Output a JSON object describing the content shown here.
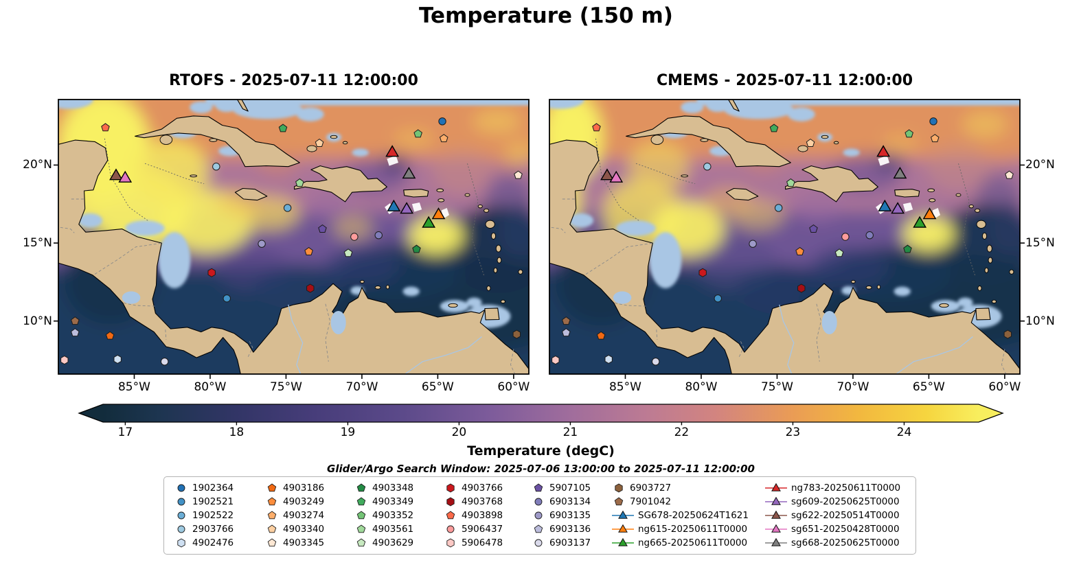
{
  "figure_title": "Temperature (150 m)",
  "panels": [
    {
      "id": "rtofs",
      "title": "RTOFS - 2025-07-11 12:00:00"
    },
    {
      "id": "cmems",
      "title": "CMEMS - 2025-07-11 12:00:00"
    }
  ],
  "axes": {
    "lat_ticks": [
      {
        "lat": 20,
        "label": "20°N"
      },
      {
        "lat": 15,
        "label": "15°N"
      },
      {
        "lat": 10,
        "label": "10°N"
      }
    ],
    "lon_ticks": [
      {
        "lon": 85,
        "label": "85°W"
      },
      {
        "lon": 80,
        "label": "80°W"
      },
      {
        "lon": 75,
        "label": "75°W"
      },
      {
        "lon": 70,
        "label": "70°W"
      },
      {
        "lon": 65,
        "label": "65°W"
      },
      {
        "lon": 60,
        "label": "60°W"
      }
    ]
  },
  "colorbar": {
    "label": "Temperature (degC)",
    "body_min": 16.8,
    "body_max": 24.67,
    "ticks": [
      17,
      18,
      19,
      20,
      21,
      22,
      23,
      24
    ],
    "stops": [
      {
        "v": 16.8,
        "color": "#122c3c"
      },
      {
        "v": 17.3,
        "color": "#1d3550"
      },
      {
        "v": 18.0,
        "color": "#323566"
      },
      {
        "v": 18.7,
        "color": "#473d7a"
      },
      {
        "v": 19.5,
        "color": "#5c4a8a"
      },
      {
        "v": 20.3,
        "color": "#7e5c9b"
      },
      {
        "v": 21.0,
        "color": "#a06d9c"
      },
      {
        "v": 21.7,
        "color": "#bd7b93"
      },
      {
        "v": 22.3,
        "color": "#d28480"
      },
      {
        "v": 23.0,
        "color": "#ea9c55"
      },
      {
        "v": 23.6,
        "color": "#f2b83f"
      },
      {
        "v": 24.2,
        "color": "#f6d53f"
      },
      {
        "v": 24.67,
        "color": "#f8ee5e"
      }
    ]
  },
  "search_window": "Glider/Argo Search Window: 2025-07-06 13:00:00 to 2025-07-11 12:00:00",
  "map_colors": {
    "land": "#d8bd92",
    "shallow": "#a9c6e4",
    "coastline": "#000000"
  },
  "legend": {
    "entries": [
      {
        "label": "1902364",
        "shape": "circle",
        "color": "#2171b5",
        "type": "float"
      },
      {
        "label": "1902521",
        "shape": "circle",
        "color": "#4292c6",
        "type": "float"
      },
      {
        "label": "1902522",
        "shape": "circle",
        "color": "#6baed6",
        "type": "float"
      },
      {
        "label": "2903766",
        "shape": "circle",
        "color": "#9ecae1",
        "type": "float"
      },
      {
        "label": "4902476",
        "shape": "hexagon",
        "color": "#cfe0f2",
        "type": "float"
      },
      {
        "label": "4903186",
        "shape": "pentagon",
        "color": "#f16913",
        "type": "float"
      },
      {
        "label": "4903249",
        "shape": "pentagon",
        "color": "#fd8d3c",
        "type": "float"
      },
      {
        "label": "4903274",
        "shape": "pentagon",
        "color": "#fdae6b",
        "type": "float"
      },
      {
        "label": "4903340",
        "shape": "pentagon",
        "color": "#fdd0a2",
        "type": "float"
      },
      {
        "label": "4903345",
        "shape": "pentagon",
        "color": "#fee8d4",
        "type": "float"
      },
      {
        "label": "4903348",
        "shape": "pentagon",
        "color": "#238b45",
        "type": "float"
      },
      {
        "label": "4903349",
        "shape": "pentagon",
        "color": "#41ab5d",
        "type": "float"
      },
      {
        "label": "4903352",
        "shape": "pentagon",
        "color": "#74c476",
        "type": "float"
      },
      {
        "label": "4903561",
        "shape": "pentagon",
        "color": "#a1d99b",
        "type": "float"
      },
      {
        "label": "4903629",
        "shape": "pentagon",
        "color": "#c7e9c0",
        "type": "float"
      },
      {
        "label": "4903766",
        "shape": "hexagon",
        "color": "#cb181d",
        "type": "float"
      },
      {
        "label": "4903768",
        "shape": "hexagon",
        "color": "#a50f15",
        "type": "float"
      },
      {
        "label": "4903898",
        "shape": "pentagon",
        "color": "#fb6a4a",
        "type": "float"
      },
      {
        "label": "5906437",
        "shape": "circle",
        "color": "#fc9c9c",
        "type": "float"
      },
      {
        "label": "5906478",
        "shape": "hexagon",
        "color": "#fcc9c5",
        "type": "float"
      },
      {
        "label": "5907105",
        "shape": "pentagon",
        "color": "#6a51a3",
        "type": "float"
      },
      {
        "label": "6903134",
        "shape": "circle",
        "color": "#807dba",
        "type": "float"
      },
      {
        "label": "6903135",
        "shape": "circle",
        "color": "#9e9ac8",
        "type": "float"
      },
      {
        "label": "6903136",
        "shape": "pentagon",
        "color": "#bcbddc",
        "type": "float"
      },
      {
        "label": "6903137",
        "shape": "circle",
        "color": "#dadaeb",
        "type": "float"
      },
      {
        "label": "6903727",
        "shape": "hexagon",
        "color": "#8c613c",
        "type": "float"
      },
      {
        "label": "7901042",
        "shape": "pentagon",
        "color": "#9c6b4a",
        "type": "float"
      },
      {
        "label": "SG678-20250624T1621",
        "shape": "triangle",
        "color": "#1f77b4",
        "type": "glider"
      },
      {
        "label": "ng615-20250611T0000",
        "shape": "triangle",
        "color": "#ff7f0e",
        "type": "glider"
      },
      {
        "label": "ng665-20250611T0000",
        "shape": "triangle",
        "color": "#2ca02c",
        "type": "glider"
      },
      {
        "label": "ng783-20250611T0000",
        "shape": "triangle",
        "color": "#d62728",
        "type": "glider"
      },
      {
        "label": "sg609-20250625T0000",
        "shape": "triangle",
        "color": "#9467bd",
        "type": "glider"
      },
      {
        "label": "sg622-20250514T0000",
        "shape": "triangle",
        "color": "#8c564b",
        "type": "glider"
      },
      {
        "label": "sg651-20250428T0000",
        "shape": "triangle",
        "color": "#e377c2",
        "type": "glider"
      },
      {
        "label": "sg668-20250625T0000",
        "shape": "triangle",
        "color": "#7f7f7f",
        "type": "glider"
      }
    ]
  },
  "map_markers": [
    {
      "id": "4903898",
      "lon": 86.9,
      "lat": 22.4
    },
    {
      "id": "4903349",
      "lon": 75.2,
      "lat": 22.35
    },
    {
      "id": "4903340",
      "lon": 72.8,
      "lat": 21.4
    },
    {
      "id": "4903352",
      "lon": 66.3,
      "lat": 22.0
    },
    {
      "id": "1902364",
      "lon": 64.7,
      "lat": 22.8
    },
    {
      "id": "4903274",
      "lon": 64.6,
      "lat": 21.7
    },
    {
      "id": "2903766",
      "lon": 79.6,
      "lat": 19.9
    },
    {
      "id": "4903561",
      "lon": 74.1,
      "lat": 18.85
    },
    {
      "id": "4903345",
      "lon": 59.7,
      "lat": 19.35
    },
    {
      "id": "1902522",
      "lon": 74.9,
      "lat": 17.25
    },
    {
      "id": "5907105",
      "lon": 72.6,
      "lat": 15.9
    },
    {
      "id": "5906437",
      "lon": 70.5,
      "lat": 15.4
    },
    {
      "id": "6903134",
      "lon": 68.9,
      "lat": 15.5
    },
    {
      "id": "6903135",
      "lon": 76.6,
      "lat": 14.95
    },
    {
      "id": "4903249",
      "lon": 73.5,
      "lat": 14.45
    },
    {
      "id": "4903629",
      "lon": 70.9,
      "lat": 14.35
    },
    {
      "id": "4903348",
      "lon": 66.4,
      "lat": 14.6
    },
    {
      "id": "4903766",
      "lon": 79.9,
      "lat": 13.1
    },
    {
      "id": "4903768",
      "lon": 73.4,
      "lat": 12.1
    },
    {
      "id": "1902521",
      "lon": 78.9,
      "lat": 11.45
    },
    {
      "id": "7901042",
      "lon": 88.9,
      "lat": 10.0
    },
    {
      "id": "6903136",
      "lon": 88.9,
      "lat": 9.25
    },
    {
      "id": "4903186",
      "lon": 86.6,
      "lat": 9.05
    },
    {
      "id": "5906478",
      "lon": 89.6,
      "lat": 7.5
    },
    {
      "id": "4902476",
      "lon": 86.1,
      "lat": 7.55
    },
    {
      "id": "6903137",
      "lon": 83.0,
      "lat": 7.4
    },
    {
      "id": "6903727",
      "lon": 59.8,
      "lat": 9.15
    }
  ],
  "map_gliders": [
    {
      "id": "sg622",
      "lon": 86.2,
      "lat": 19.35
    },
    {
      "id": "sg651",
      "lon": 85.6,
      "lat": 19.2
    },
    {
      "id": "ng783",
      "lon": 68.0,
      "lat": 20.85
    },
    {
      "id": "sg668",
      "lon": 66.9,
      "lat": 19.45
    },
    {
      "id": "SG678",
      "lon": 67.9,
      "lat": 17.35
    },
    {
      "id": "sg609",
      "lon": 67.05,
      "lat": 17.2
    },
    {
      "id": "ng615",
      "lon": 64.95,
      "lat": 16.85
    },
    {
      "id": "ng665",
      "lon": 65.6,
      "lat": 16.3
    }
  ],
  "chart_data": {
    "type": "heatmap",
    "title": "Temperature (150 m)",
    "variable": "Temperature (degC)",
    "depth_m": 150,
    "panels": [
      {
        "model": "RTOFS",
        "time": "2025-07-11 12:00:00"
      },
      {
        "model": "CMEMS",
        "time": "2025-07-11 12:00:00"
      }
    ],
    "colorbar": {
      "label": "Temperature (degC)",
      "ticks": [
        17,
        18,
        19,
        20,
        21,
        22,
        23,
        24
      ],
      "extend": "both"
    },
    "x_ticks": [
      "85°W",
      "80°W",
      "75°W",
      "70°W",
      "65°W",
      "60°W"
    ],
    "y_ticks": [
      "20°N",
      "15°N",
      "10°N"
    ],
    "map_extent": {
      "lon_w": [
        90,
        59
      ],
      "lat_n": [
        6.6,
        24.2
      ]
    },
    "search_window": "2025-07-06 13:00:00 to 2025-07-11 12:00:00",
    "argo_floats": [
      "1902364",
      "1902521",
      "1902522",
      "2903766",
      "4902476",
      "4903186",
      "4903249",
      "4903274",
      "4903340",
      "4903345",
      "4903348",
      "4903349",
      "4903352",
      "4903561",
      "4903629",
      "4903766",
      "4903768",
      "4903898",
      "5906437",
      "5906478",
      "5907105",
      "6903134",
      "6903135",
      "6903136",
      "6903137",
      "6903727",
      "7901042"
    ],
    "gliders": [
      "SG678-20250624T1621",
      "ng615-20250611T0000",
      "ng665-20250611T0000",
      "ng783-20250611T0000",
      "sg609-20250625T0000",
      "sg622-20250514T0000",
      "sg651-20250428T0000",
      "sg668-20250625T0000"
    ]
  }
}
